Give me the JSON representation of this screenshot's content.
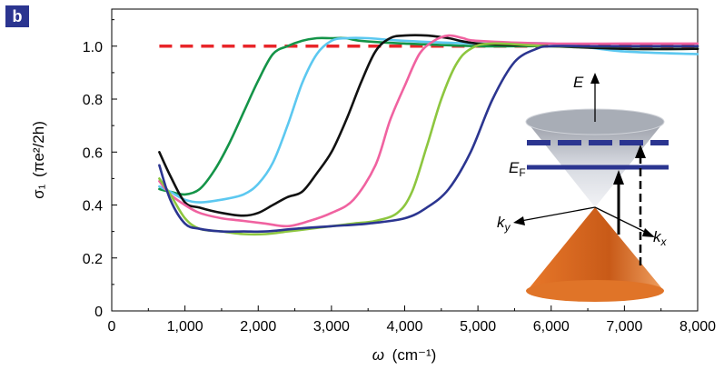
{
  "panel_label": "b",
  "chart_data": {
    "type": "line",
    "xlabel": {
      "symbol": "ω",
      "unit": "(cm⁻¹)"
    },
    "ylabel": {
      "symbol": "σ₁",
      "unit": "(πe²/2h)"
    },
    "xlim": [
      0,
      8000
    ],
    "ylim": [
      0,
      1.14
    ],
    "x_ticks": [
      0,
      1000,
      2000,
      3000,
      4000,
      5000,
      6000,
      7000,
      8000
    ],
    "x_tick_labels": [
      "0",
      "1,000",
      "2,000",
      "3,000",
      "4,000",
      "5,000",
      "6,000",
      "7,000",
      "8,000"
    ],
    "y_ticks": [
      0,
      0.2,
      0.4,
      0.6,
      0.8,
      1.0
    ],
    "y_tick_labels": [
      "0",
      "0.2",
      "0.4",
      "0.6",
      "0.8",
      "1.0"
    ],
    "grid": false,
    "reference_line": {
      "y": 1.0,
      "x_range": [
        650,
        8000
      ],
      "color": "#e8262a",
      "style": "dashed"
    },
    "series": [
      {
        "color": "#149448",
        "points": [
          [
            650,
            0.46
          ],
          [
            800,
            0.45
          ],
          [
            1000,
            0.44
          ],
          [
            1200,
            0.46
          ],
          [
            1400,
            0.53
          ],
          [
            1600,
            0.63
          ],
          [
            1800,
            0.75
          ],
          [
            2000,
            0.87
          ],
          [
            2200,
            0.97
          ],
          [
            2400,
            1.0
          ],
          [
            2600,
            1.02
          ],
          [
            2800,
            1.03
          ],
          [
            3000,
            1.03
          ],
          [
            3200,
            1.03
          ],
          [
            3400,
            1.02
          ],
          [
            4000,
            1.01
          ],
          [
            5000,
            1.0
          ],
          [
            6000,
            1.0
          ],
          [
            7000,
            0.99
          ],
          [
            8000,
            0.99
          ]
        ]
      },
      {
        "color": "#5cc8f0",
        "points": [
          [
            650,
            0.47
          ],
          [
            800,
            0.45
          ],
          [
            1000,
            0.42
          ],
          [
            1200,
            0.41
          ],
          [
            1500,
            0.42
          ],
          [
            1800,
            0.44
          ],
          [
            2000,
            0.48
          ],
          [
            2200,
            0.56
          ],
          [
            2400,
            0.7
          ],
          [
            2600,
            0.86
          ],
          [
            2800,
            0.97
          ],
          [
            3000,
            1.02
          ],
          [
            3200,
            1.03
          ],
          [
            3500,
            1.03
          ],
          [
            4000,
            1.02
          ],
          [
            5000,
            1.01
          ],
          [
            6000,
            1.01
          ],
          [
            7000,
            0.98
          ],
          [
            8000,
            0.97
          ]
        ]
      },
      {
        "color": "#111111",
        "points": [
          [
            650,
            0.6
          ],
          [
            800,
            0.51
          ],
          [
            1000,
            0.41
          ],
          [
            1200,
            0.39
          ],
          [
            1500,
            0.37
          ],
          [
            1800,
            0.36
          ],
          [
            2000,
            0.37
          ],
          [
            2200,
            0.4
          ],
          [
            2400,
            0.43
          ],
          [
            2600,
            0.45
          ],
          [
            2800,
            0.52
          ],
          [
            3000,
            0.6
          ],
          [
            3200,
            0.72
          ],
          [
            3400,
            0.86
          ],
          [
            3600,
            0.98
          ],
          [
            3800,
            1.03
          ],
          [
            4000,
            1.04
          ],
          [
            4300,
            1.04
          ],
          [
            4600,
            1.03
          ],
          [
            5000,
            1.01
          ],
          [
            6000,
            1.0
          ],
          [
            7000,
            0.99
          ],
          [
            8000,
            0.99
          ]
        ]
      },
      {
        "color": "#f062a0",
        "points": [
          [
            650,
            0.49
          ],
          [
            800,
            0.44
          ],
          [
            1000,
            0.4
          ],
          [
            1200,
            0.37
          ],
          [
            1500,
            0.35
          ],
          [
            1800,
            0.34
          ],
          [
            2100,
            0.33
          ],
          [
            2400,
            0.32
          ],
          [
            2700,
            0.34
          ],
          [
            3000,
            0.37
          ],
          [
            3300,
            0.42
          ],
          [
            3600,
            0.55
          ],
          [
            3800,
            0.72
          ],
          [
            4000,
            0.85
          ],
          [
            4200,
            0.97
          ],
          [
            4400,
            1.02
          ],
          [
            4600,
            1.04
          ],
          [
            4800,
            1.03
          ],
          [
            5000,
            1.02
          ],
          [
            6000,
            1.01
          ],
          [
            7000,
            1.01
          ],
          [
            8000,
            1.01
          ]
        ]
      },
      {
        "color": "#8dc63f",
        "points": [
          [
            650,
            0.5
          ],
          [
            800,
            0.44
          ],
          [
            1000,
            0.35
          ],
          [
            1200,
            0.31
          ],
          [
            1500,
            0.3
          ],
          [
            1800,
            0.29
          ],
          [
            2100,
            0.29
          ],
          [
            2400,
            0.3
          ],
          [
            2700,
            0.31
          ],
          [
            3000,
            0.32
          ],
          [
            3300,
            0.33
          ],
          [
            3600,
            0.34
          ],
          [
            3900,
            0.37
          ],
          [
            4100,
            0.45
          ],
          [
            4300,
            0.62
          ],
          [
            4500,
            0.8
          ],
          [
            4700,
            0.93
          ],
          [
            4900,
            0.99
          ],
          [
            5200,
            1.01
          ],
          [
            6000,
            1.0
          ],
          [
            7000,
            1.0
          ],
          [
            8000,
            1.0
          ]
        ]
      },
      {
        "color": "#2b3590",
        "points": [
          [
            650,
            0.55
          ],
          [
            800,
            0.42
          ],
          [
            1000,
            0.33
          ],
          [
            1200,
            0.31
          ],
          [
            1500,
            0.3
          ],
          [
            1800,
            0.3
          ],
          [
            2100,
            0.3
          ],
          [
            2500,
            0.31
          ],
          [
            3000,
            0.32
          ],
          [
            3500,
            0.33
          ],
          [
            4000,
            0.35
          ],
          [
            4300,
            0.39
          ],
          [
            4600,
            0.46
          ],
          [
            4900,
            0.6
          ],
          [
            5200,
            0.8
          ],
          [
            5500,
            0.94
          ],
          [
            5800,
            0.99
          ],
          [
            6000,
            1.0
          ],
          [
            6500,
            1.0
          ],
          [
            7000,
            1.0
          ],
          [
            7500,
            1.0
          ],
          [
            8000,
            1.0
          ]
        ]
      }
    ]
  },
  "inset": {
    "labels": {
      "energy": "E",
      "fermi_main": "E",
      "fermi_sub": "F",
      "ky_main": "k",
      "ky_sub": "y",
      "kx_main": "k",
      "kx_sub": "x"
    },
    "colors": {
      "upper_cone": "#c4c8d0",
      "lower_cone": "#e8782a",
      "fermi_line": "#2b3590"
    }
  }
}
